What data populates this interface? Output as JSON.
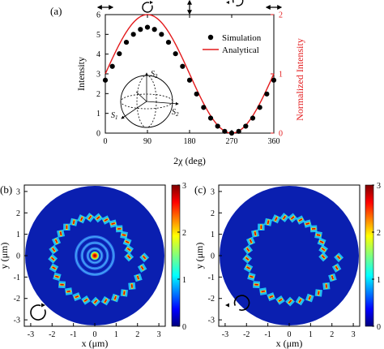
{
  "chart_data": [
    {
      "panel": "(a)",
      "type": "scatter",
      "xlabel": "2χ (deg)",
      "ylabel": "Intensity",
      "y2label": "Normalized Intensity",
      "xlim": [
        0,
        360
      ],
      "ylim": [
        0,
        6
      ],
      "y2lim": [
        0,
        2
      ],
      "xticks": [
        "0",
        "90",
        "180",
        "270",
        "360"
      ],
      "yticks": [
        "0",
        "1",
        "2",
        "3",
        "4",
        "5",
        "6"
      ],
      "y2ticks": [
        "0",
        "1",
        "2"
      ],
      "grid": false,
      "legend": "top-right",
      "series": [
        {
          "name": "Simulation",
          "kind": "points",
          "color": "#000000",
          "x": [
            0,
            15,
            30,
            45,
            60,
            75,
            90,
            105,
            120,
            135,
            150,
            165,
            180,
            195,
            210,
            225,
            240,
            255,
            270,
            285,
            300,
            315,
            330,
            345,
            360
          ],
          "y": [
            2.68,
            3.38,
            4.02,
            4.6,
            5.0,
            5.25,
            5.36,
            5.25,
            5.0,
            4.6,
            4.02,
            3.38,
            2.68,
            1.98,
            1.3,
            0.76,
            0.35,
            0.09,
            0.0,
            0.09,
            0.35,
            0.76,
            1.3,
            1.98,
            2.68
          ]
        },
        {
          "name": "Analytical",
          "kind": "line",
          "color": "#e31a1c",
          "formula": "1 + sin(2χ)",
          "axis": "right"
        }
      ],
      "top_icons": [
        "horizontal-arrow-icon",
        "clockwise-circle-icon",
        "vertical-arrow-icon",
        "counterclockwise-circle-icon",
        "horizontal-arrow-icon"
      ],
      "inset": {
        "type": "poincare-sphere",
        "labels": [
          "S3",
          "S2",
          "S1"
        ]
      }
    },
    {
      "panel": "(b)",
      "type": "heatmap",
      "xlabel": "x (μm)",
      "ylabel": "y (μm)",
      "xlim": [
        -3.3,
        3.3
      ],
      "ylim": [
        -3.3,
        3.3
      ],
      "xticks": [
        "-3",
        "-2",
        "-1",
        "0",
        "1",
        "2",
        "3"
      ],
      "yticks": [
        "-3",
        "-2",
        "-1",
        "0",
        "1",
        "2",
        "3"
      ],
      "colorbar": {
        "min": 0,
        "max": 3,
        "ticks": [
          "0",
          "1",
          "2",
          "3"
        ]
      },
      "features": [
        "spiral-nanoholes",
        "concentric-rings",
        "central-focus"
      ],
      "polarization_icon": "clockwise"
    },
    {
      "panel": "(c)",
      "type": "heatmap",
      "xlabel": "x (μm)",
      "ylabel": "y (μm)",
      "xlim": [
        -3.3,
        3.3
      ],
      "ylim": [
        -3.3,
        3.3
      ],
      "xticks": [
        "-3",
        "-2",
        "-1",
        "0",
        "1",
        "2",
        "3"
      ],
      "yticks": [
        "-3",
        "-2",
        "-1",
        "0",
        "1",
        "2",
        "3"
      ],
      "colorbar": {
        "min": 0,
        "max": 3,
        "ticks": [
          "0",
          "1",
          "2",
          "3"
        ]
      },
      "features": [
        "spiral-nanoholes"
      ],
      "polarization_icon": "counterclockwise"
    }
  ]
}
